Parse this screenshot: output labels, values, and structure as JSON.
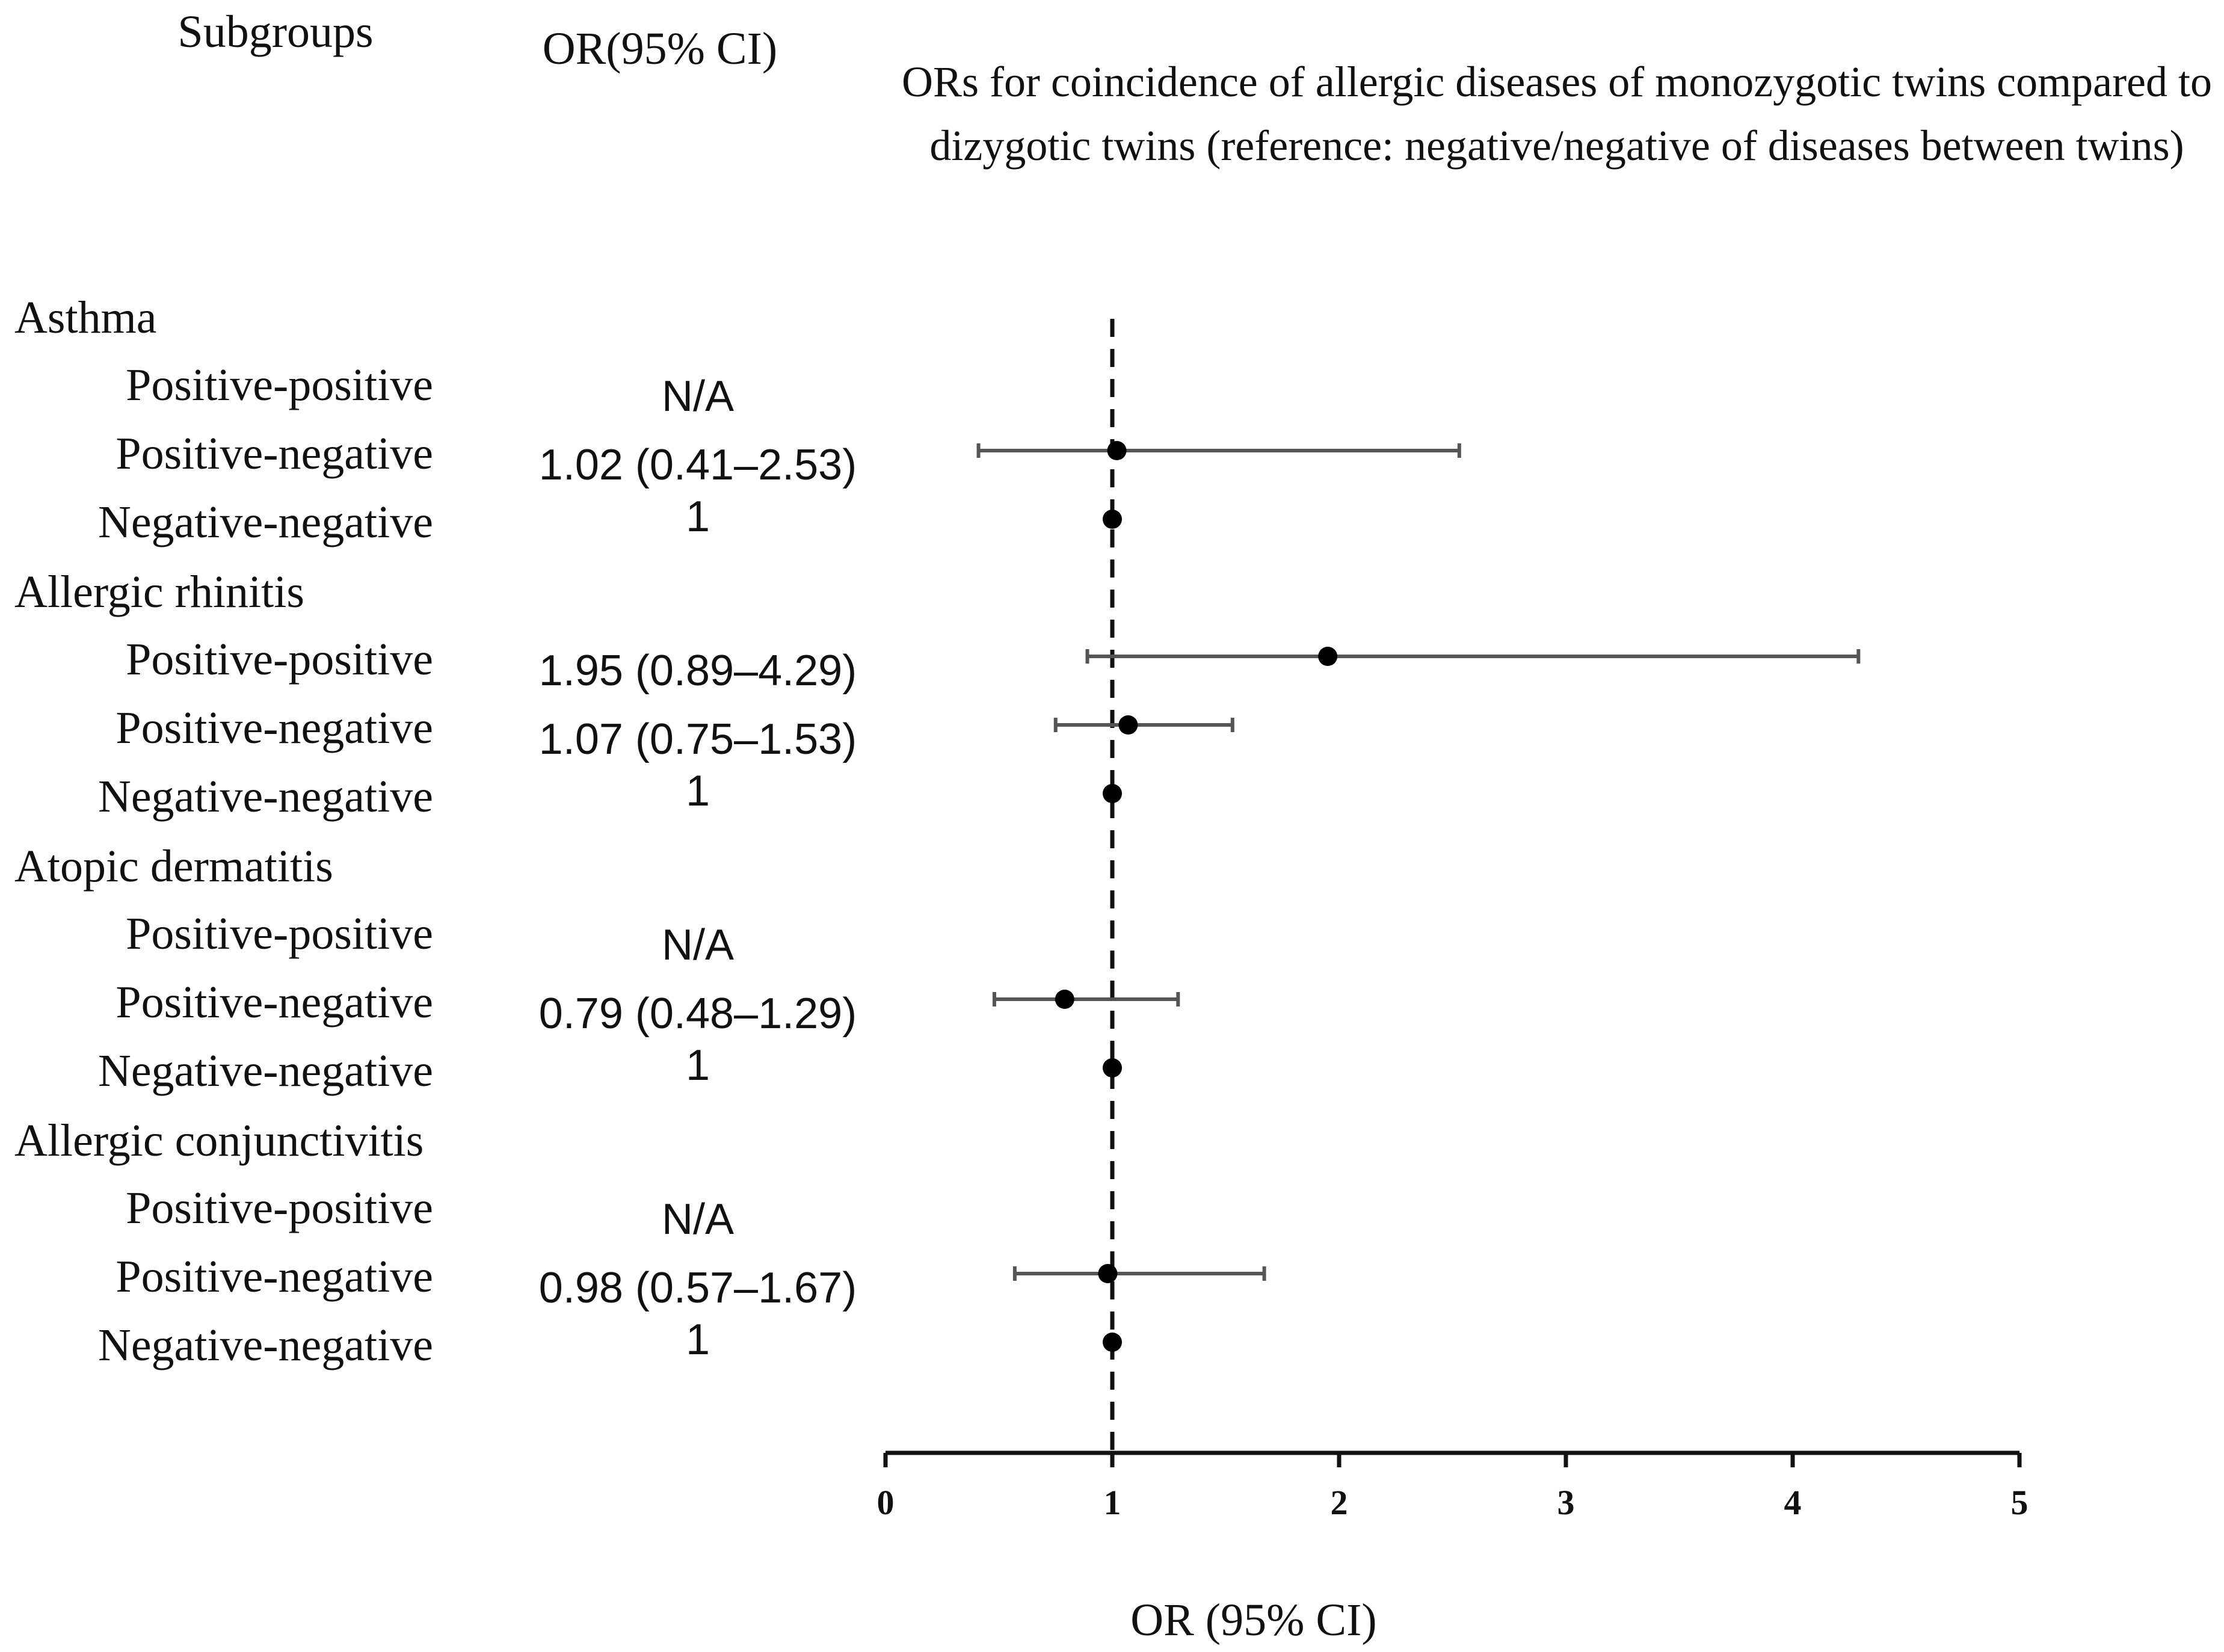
{
  "header": {
    "subgroups_label": "Subgroups",
    "or_column_label": "OR(95% CI)",
    "title_line1": "ORs for coincidence of allergic diseases of monozygotic twins compared to",
    "title_line2": "dizygotic twins (reference: negative/negative of diseases between twins)"
  },
  "chart_data": {
    "type": "forest",
    "title": "ORs for coincidence of allergic diseases of monozygotic twins compared to dizygotic twins (reference: negative/negative of diseases between twins)",
    "xlabel": "OR (95% CI)",
    "xlim": [
      0,
      5
    ],
    "xticks": [
      "0",
      "1",
      "2",
      "3",
      "4",
      "5"
    ],
    "reference_line": 1,
    "marker_color": "#000000",
    "ci_line_color": "#555555",
    "groups": [
      {
        "name": "Asthma",
        "rows": [
          {
            "label": "Positive-positive",
            "or_text": "N/A",
            "or": null,
            "lo": null,
            "hi": null
          },
          {
            "label": "Positive-negative",
            "or_text": "1.02 (0.41–2.53)",
            "or": 1.02,
            "lo": 0.41,
            "hi": 2.53
          },
          {
            "label": "Negative-negative",
            "or_text": "1",
            "or": 1,
            "lo": null,
            "hi": null
          }
        ]
      },
      {
        "name": "Allergic rhinitis",
        "rows": [
          {
            "label": "Positive-positive",
            "or_text": "1.95 (0.89–4.29)",
            "or": 1.95,
            "lo": 0.89,
            "hi": 4.29
          },
          {
            "label": "Positive-negative",
            "or_text": "1.07 (0.75–1.53)",
            "or": 1.07,
            "lo": 0.75,
            "hi": 1.53
          },
          {
            "label": "Negative-negative",
            "or_text": "1",
            "or": 1,
            "lo": null,
            "hi": null
          }
        ]
      },
      {
        "name": "Atopic dermatitis",
        "rows": [
          {
            "label": "Positive-positive",
            "or_text": "N/A",
            "or": null,
            "lo": null,
            "hi": null
          },
          {
            "label": "Positive-negative",
            "or_text": "0.79 (0.48–1.29)",
            "or": 0.79,
            "lo": 0.48,
            "hi": 1.29
          },
          {
            "label": "Negative-negative",
            "or_text": "1",
            "or": 1,
            "lo": null,
            "hi": null
          }
        ]
      },
      {
        "name": "Allergic conjunctivitis",
        "rows": [
          {
            "label": "Positive-positive",
            "or_text": "N/A",
            "or": null,
            "lo": null,
            "hi": null
          },
          {
            "label": "Positive-negative",
            "or_text": "0.98 (0.57–1.67)",
            "or": 0.98,
            "lo": 0.57,
            "hi": 1.67
          },
          {
            "label": "Negative-negative",
            "or_text": "1",
            "or": 1,
            "lo": null,
            "hi": null
          }
        ]
      }
    ]
  }
}
